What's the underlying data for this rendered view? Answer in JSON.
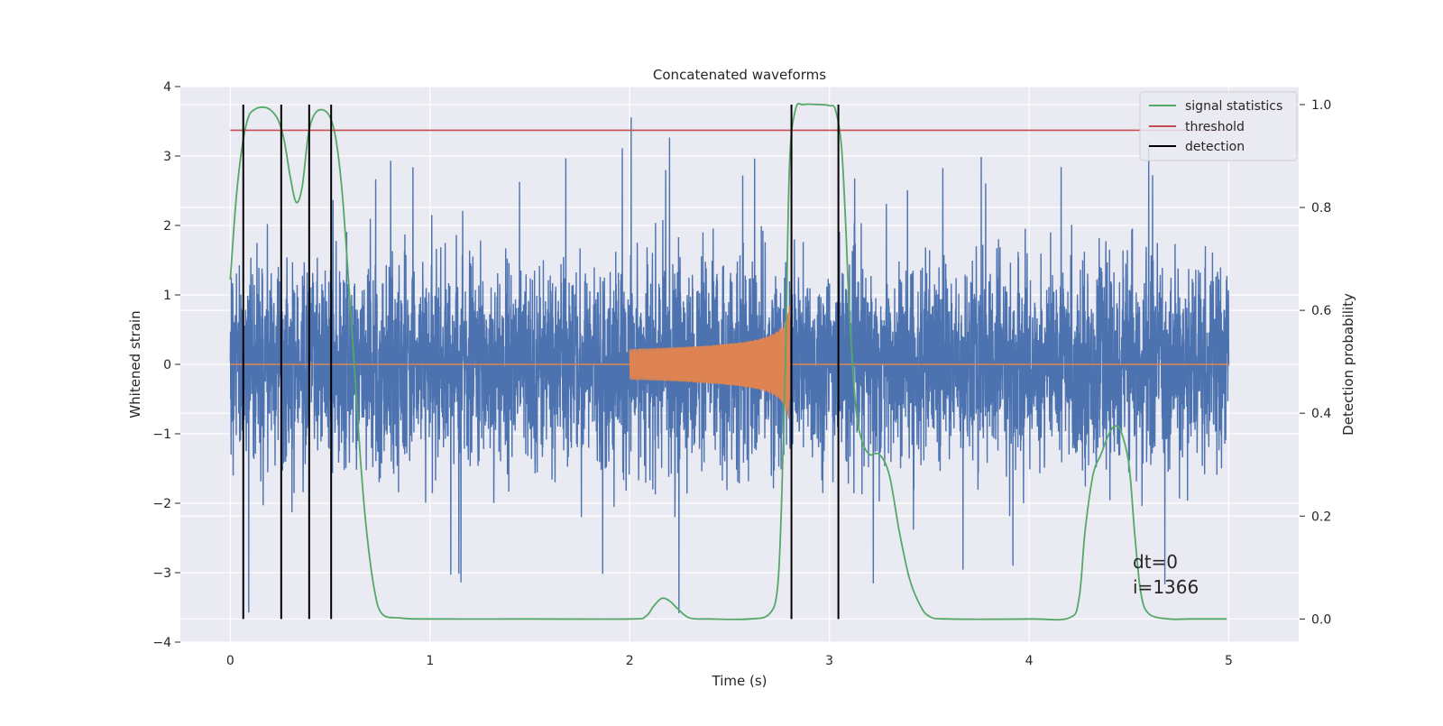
{
  "chart_data": {
    "type": "line",
    "title": "Concatenated waveforms",
    "xlabel": "Time (s)",
    "ylabel": "Whitened strain",
    "y2label": "Detection probability",
    "xlim": [
      -0.25,
      5.35
    ],
    "ylim": [
      -4,
      4
    ],
    "y2lim": [
      -0.045,
      1.035
    ],
    "x_ticks": [
      0,
      1,
      2,
      3,
      4,
      5
    ],
    "x_tick_labels": [
      "0",
      "1",
      "2",
      "3",
      "4",
      "5"
    ],
    "y_ticks": [
      -4,
      -3,
      -2,
      -1,
      0,
      1,
      2,
      3,
      4
    ],
    "y_tick_labels": [
      "−4",
      "−3",
      "−2",
      "−1",
      "0",
      "1",
      "2",
      "3",
      "4"
    ],
    "y2_ticks": [
      0.0,
      0.2,
      0.4,
      0.6,
      0.8,
      1.0
    ],
    "y2_tick_labels": [
      "0.0",
      "0.2",
      "0.4",
      "0.6",
      "0.8",
      "1.0"
    ],
    "grid": true,
    "legend_position": "top-right",
    "noise": {
      "color": "#4c72b0",
      "x_range": [
        0,
        5
      ],
      "typical_peak_abs": 2.1,
      "max_value": 3.7,
      "min_value": -3.7
    },
    "injection": {
      "color": "#dd8452",
      "t_start": 2.0,
      "t_merger": 2.8,
      "peak_amplitude": 0.85,
      "baseline": 0
    },
    "series": [
      {
        "name": "signal statistics",
        "color": "#55a868",
        "axis": "right",
        "x": [
          0,
          0.03,
          0.06,
          0.09,
          0.12,
          0.16,
          0.2,
          0.24,
          0.27,
          0.3,
          0.33,
          0.36,
          0.39,
          0.42,
          0.46,
          0.5,
          0.53,
          0.56,
          0.59,
          0.62,
          0.65,
          0.68,
          0.72,
          0.76,
          0.85,
          1.0,
          1.5,
          2.0,
          2.08,
          2.12,
          2.16,
          2.2,
          2.24,
          2.3,
          2.4,
          2.6,
          2.7,
          2.74,
          2.76,
          2.78,
          2.8,
          2.83,
          2.87,
          2.95,
          3.0,
          3.03,
          3.06,
          3.08,
          3.1,
          3.13,
          3.16,
          3.2,
          3.25,
          3.3,
          3.35,
          3.4,
          3.45,
          3.5,
          3.6,
          4.0,
          4.2,
          4.25,
          4.28,
          4.32,
          4.36,
          4.4,
          4.43,
          4.46,
          4.5,
          4.53,
          4.56,
          4.6,
          4.7,
          4.8,
          4.99
        ],
        "values": [
          0.66,
          0.82,
          0.92,
          0.975,
          0.99,
          0.995,
          0.99,
          0.97,
          0.93,
          0.86,
          0.81,
          0.84,
          0.94,
          0.98,
          0.99,
          0.975,
          0.93,
          0.83,
          0.67,
          0.5,
          0.32,
          0.18,
          0.06,
          0.01,
          0.002,
          0.0,
          0.0,
          0.0,
          0.005,
          0.025,
          0.04,
          0.035,
          0.02,
          0.002,
          0.0,
          0.0,
          0.01,
          0.06,
          0.22,
          0.5,
          0.88,
          0.99,
          1.0,
          1.0,
          0.998,
          0.99,
          0.92,
          0.78,
          0.6,
          0.42,
          0.35,
          0.32,
          0.32,
          0.28,
          0.17,
          0.08,
          0.03,
          0.005,
          0.0,
          0.0,
          0.002,
          0.04,
          0.17,
          0.28,
          0.32,
          0.36,
          0.375,
          0.365,
          0.3,
          0.16,
          0.05,
          0.01,
          0.0,
          0.0,
          0.0
        ]
      },
      {
        "name": "threshold",
        "color": "#c44e52",
        "axis": "right",
        "x": [
          0,
          5
        ],
        "values": [
          0.95,
          0.95
        ]
      },
      {
        "name": "detection",
        "color": "#000000",
        "axis": "right",
        "x": [
          0.065,
          0.255,
          0.395,
          0.505,
          2.81,
          3.045
        ],
        "values": [
          1.0,
          1.0,
          1.0,
          1.0,
          1.0,
          1.0
        ],
        "y_from": 0.0
      }
    ],
    "annotations": [
      "dt=0",
      "i=1366"
    ]
  }
}
